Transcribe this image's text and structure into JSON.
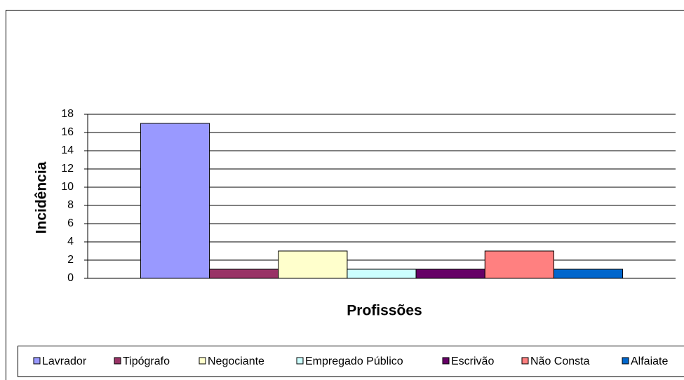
{
  "chart_data": {
    "type": "bar",
    "categories": [
      null
    ],
    "series": [
      {
        "name": "Lavrador",
        "color": "#9999ff",
        "values": [
          17
        ]
      },
      {
        "name": "Tipógrafo",
        "color": "#993366",
        "values": [
          1
        ]
      },
      {
        "name": "Negociante",
        "color": "#ffffcc",
        "values": [
          3
        ]
      },
      {
        "name": "Empregado Público",
        "color": "#ccffff",
        "values": [
          1
        ]
      },
      {
        "name": "Escrivão",
        "color": "#660066",
        "values": [
          1
        ]
      },
      {
        "name": "Não Consta",
        "color": "#ff8080",
        "values": [
          3
        ]
      },
      {
        "name": "Alfaiate",
        "color": "#0066cc",
        "values": [
          1
        ]
      }
    ],
    "x_label": "Profissões",
    "y_label": "Incidência",
    "ylim": [
      0,
      18
    ],
    "yticks": [
      0,
      2,
      4,
      6,
      8,
      10,
      12,
      14,
      16,
      18
    ],
    "grid": true,
    "legend": "bottom"
  }
}
